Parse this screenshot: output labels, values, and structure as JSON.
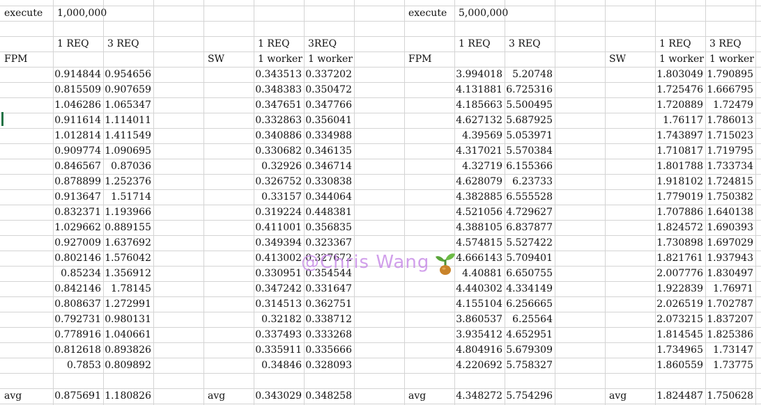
{
  "sheet": {
    "cells": [
      [
        "execute",
        "1,000,000",
        "",
        "",
        "",
        "",
        "",
        "",
        "execute",
        "5,000,000",
        "",
        "",
        "",
        "",
        "",
        ""
      ],
      [
        "",
        "",
        "",
        "",
        "",
        "",
        "",
        "",
        "",
        "",
        "",
        "",
        "",
        "",
        "",
        ""
      ],
      [
        "",
        "1 REQ",
        "3 REQ",
        "",
        "",
        "1 REQ",
        "3REQ",
        "",
        "",
        "1 REQ",
        "3 REQ",
        "",
        "",
        "1 REQ",
        "3 REQ",
        ""
      ],
      [
        "FPM",
        "",
        "",
        "",
        "SW",
        "1 worker",
        "1 worker",
        "",
        "FPM",
        "",
        "",
        "",
        "SW",
        "1 worker",
        "1 worker",
        ""
      ],
      [
        "",
        "0.914844",
        "0.954656",
        "",
        "",
        "0.343513",
        "0.337202",
        "",
        "",
        "3.994018",
        "5.20748",
        "",
        "",
        "1.803049",
        "1.790895",
        ""
      ],
      [
        "",
        "0.815509",
        "0.907659",
        "",
        "",
        "0.348383",
        "0.350472",
        "",
        "",
        "4.131881",
        "6.725316",
        "",
        "",
        "1.725476",
        "1.666795",
        ""
      ],
      [
        "",
        "1.046286",
        "1.065347",
        "",
        "",
        "0.347651",
        "0.347766",
        "",
        "",
        "4.185663",
        "5.500495",
        "",
        "",
        "1.720889",
        "1.72479",
        ""
      ],
      [
        "",
        "0.911614",
        "1.114011",
        "",
        "",
        "0.332863",
        "0.356041",
        "",
        "",
        "4.627132",
        "5.687925",
        "",
        "",
        "1.76117",
        "1.786013",
        ""
      ],
      [
        "",
        "1.012814",
        "1.411549",
        "",
        "",
        "0.340886",
        "0.334988",
        "",
        "",
        "4.39569",
        "5.053971",
        "",
        "",
        "1.743897",
        "1.715023",
        ""
      ],
      [
        "",
        "0.909774",
        "1.090695",
        "",
        "",
        "0.330682",
        "0.346135",
        "",
        "",
        "4.317021",
        "5.570384",
        "",
        "",
        "1.710817",
        "1.719795",
        ""
      ],
      [
        "",
        "0.846567",
        "0.87036",
        "",
        "",
        "0.32926",
        "0.346714",
        "",
        "",
        "4.32719",
        "6.155366",
        "",
        "",
        "1.801788",
        "1.733734",
        ""
      ],
      [
        "",
        "0.878899",
        "1.252376",
        "",
        "",
        "0.326752",
        "0.330838",
        "",
        "",
        "4.628079",
        "6.23733",
        "",
        "",
        "1.918102",
        "1.724815",
        ""
      ],
      [
        "",
        "0.913647",
        "1.51714",
        "",
        "",
        "0.33157",
        "0.344064",
        "",
        "",
        "4.382885",
        "6.555528",
        "",
        "",
        "1.779019",
        "1.750382",
        ""
      ],
      [
        "",
        "0.832371",
        "1.193966",
        "",
        "",
        "0.319224",
        "0.448381",
        "",
        "",
        "4.521056",
        "4.729627",
        "",
        "",
        "1.707886",
        "1.640138",
        ""
      ],
      [
        "",
        "1.029662",
        "0.889155",
        "",
        "",
        "0.411001",
        "0.356835",
        "",
        "",
        "4.388105",
        "6.837877",
        "",
        "",
        "1.824572",
        "1.690393",
        ""
      ],
      [
        "",
        "0.927009",
        "1.637692",
        "",
        "",
        "0.349394",
        "0.323367",
        "",
        "",
        "4.574815",
        "5.527422",
        "",
        "",
        "1.730898",
        "1.697029",
        ""
      ],
      [
        "",
        "0.802146",
        "1.576042",
        "",
        "",
        "0.413002",
        "0.327672",
        "",
        "",
        "4.666143",
        "5.709401",
        "",
        "",
        "1.821761",
        "1.937943",
        ""
      ],
      [
        "",
        "0.85234",
        "1.356912",
        "",
        "",
        "0.330951",
        "0.354544",
        "",
        "",
        "4.40881",
        "6.650755",
        "",
        "",
        "2.007776",
        "1.830497",
        ""
      ],
      [
        "",
        "0.842146",
        "1.78145",
        "",
        "",
        "0.347242",
        "0.331647",
        "",
        "",
        "4.440302",
        "4.334149",
        "",
        "",
        "1.922839",
        "1.76971",
        ""
      ],
      [
        "",
        "0.808637",
        "1.272991",
        "",
        "",
        "0.314513",
        "0.362751",
        "",
        "",
        "4.155104",
        "6.256665",
        "",
        "",
        "2.026519",
        "1.702787",
        ""
      ],
      [
        "",
        "0.792731",
        "0.980131",
        "",
        "",
        "0.32182",
        "0.338712",
        "",
        "",
        "3.860537",
        "6.25564",
        "",
        "",
        "2.073215",
        "1.837207",
        ""
      ],
      [
        "",
        "0.778916",
        "1.040661",
        "",
        "",
        "0.337493",
        "0.333268",
        "",
        "",
        "3.935412",
        "4.652951",
        "",
        "",
        "1.814545",
        "1.825386",
        ""
      ],
      [
        "",
        "0.812618",
        "0.893826",
        "",
        "",
        "0.335911",
        "0.335666",
        "",
        "",
        "4.804916",
        "5.679309",
        "",
        "",
        "1.734965",
        "1.73147",
        ""
      ],
      [
        "",
        "0.7853",
        "0.809892",
        "",
        "",
        "0.34846",
        "0.328093",
        "",
        "",
        "4.220692",
        "5.758327",
        "",
        "",
        "1.860559",
        "1.73775",
        ""
      ],
      [
        "",
        "",
        "",
        "",
        "",
        "",
        "",
        "",
        "",
        "",
        "",
        "",
        "",
        "",
        "",
        ""
      ],
      [
        "avg",
        "0.875691",
        "1.180826",
        "",
        "avg",
        "0.343029",
        "0.348258",
        "",
        "avg",
        "4.348272",
        "5.754296",
        "",
        "avg",
        "1.824487",
        "1.750628",
        ""
      ]
    ]
  },
  "watermark": {
    "text": "@Chris Wang",
    "logo_icon": "sprout-icon",
    "color": "#c98fe8"
  }
}
